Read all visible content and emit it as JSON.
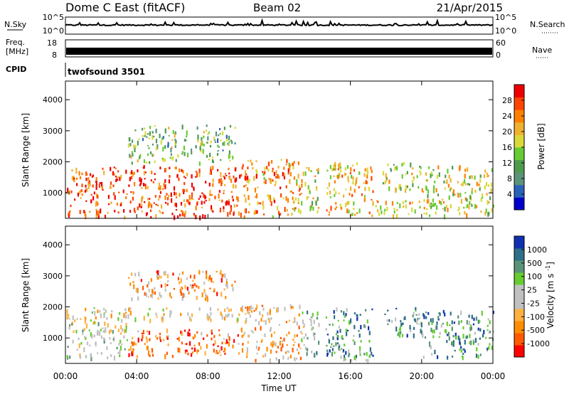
{
  "header": {
    "station": "Dome C East (fitACF)",
    "beam": "Beam 02",
    "date": "21/Apr/2015"
  },
  "strips": {
    "nsky": {
      "label": "N.Sky",
      "ticks": [
        "10^5",
        "10^0"
      ]
    },
    "nsearch": {
      "label": "N.Search",
      "ticks": [
        "10^5",
        "10^0"
      ]
    },
    "freq": {
      "label_line1": "Freq.",
      "label_line2": "[MHz]",
      "ticks": [
        "18",
        "8"
      ]
    },
    "nave": {
      "label": "Nave",
      "ticks": [
        "60",
        "0"
      ]
    },
    "cpid": {
      "label": "CPID",
      "value": "twofsound 3501"
    }
  },
  "colors": {
    "power": [
      "#0000cc",
      "#2a62b8",
      "#5b9378",
      "#4e9b4e",
      "#66cc33",
      "#d9d93a",
      "#f0b030",
      "#ff7f00",
      "#ff4400",
      "#ee0000"
    ],
    "velocity": [
      "#ff0000",
      "#ff5a00",
      "#ff8c00",
      "#ffb040",
      "#c0c0c0",
      "#c0c0c0",
      "#66cc33",
      "#5b9378",
      "#2e6f88",
      "#1030b0"
    ]
  },
  "chart_data": [
    {
      "type": "heatmap",
      "name": "power-panel",
      "ylabel": "Slant Range [km]",
      "colorbar_label": "Power [dB]",
      "yticks": [
        "4000",
        "3000",
        "2000",
        "1000"
      ],
      "ytick_values": [
        4000,
        3000,
        2000,
        1000
      ],
      "ylim": [
        180,
        4600
      ],
      "colorbar_ticks": [
        "28",
        "24",
        "20",
        "16",
        "12",
        "8",
        "4"
      ],
      "colorbar_range": [
        0,
        32
      ],
      "echo_bands": [
        {
          "t0": 0.0,
          "t1": 9.8,
          "r0": 250,
          "r1": 1900,
          "level": 0.85
        },
        {
          "t0": 9.8,
          "t1": 13.2,
          "r0": 250,
          "r1": 2100,
          "level": 0.7
        },
        {
          "t0": 13.2,
          "t1": 14.2,
          "r0": 300,
          "r1": 1900,
          "level": 0.55
        },
        {
          "t0": 14.6,
          "t1": 17.3,
          "r0": 300,
          "r1": 2000,
          "level": 0.65
        },
        {
          "t0": 17.3,
          "t1": 20.0,
          "r0": 300,
          "r1": 800,
          "level": 0.6
        },
        {
          "t0": 17.8,
          "t1": 20.0,
          "r0": 1100,
          "r1": 2000,
          "level": 0.5
        },
        {
          "t0": 20.0,
          "t1": 24.0,
          "r0": 300,
          "r1": 1900,
          "level": 0.55
        },
        {
          "t0": 3.5,
          "t1": 9.5,
          "r0": 2000,
          "r1": 3200,
          "level": 0.4
        }
      ]
    },
    {
      "type": "heatmap",
      "name": "velocity-panel",
      "ylabel": "Slant Range [km]",
      "colorbar_label": "Velocity [m s^-1]",
      "yticks": [
        "4000",
        "3000",
        "2000",
        "1000"
      ],
      "ytick_values": [
        4000,
        3000,
        2000,
        1000
      ],
      "ylim": [
        180,
        4600
      ],
      "colorbar_ticks": [
        "1000",
        "500",
        "100",
        "25",
        "-25",
        "-100",
        "-500",
        "-1000"
      ],
      "echo_bands": [
        {
          "t0": 0.0,
          "t1": 3.5,
          "r0": 400,
          "r1": 1600,
          "level": 0.55
        },
        {
          "t0": 3.5,
          "t1": 9.8,
          "r0": 450,
          "r1": 1300,
          "level": 0.2
        },
        {
          "t0": 0.0,
          "t1": 9.8,
          "r0": 1600,
          "r1": 2000,
          "level": 0.45
        },
        {
          "t0": 9.8,
          "t1": 13.2,
          "r0": 300,
          "r1": 2100,
          "level": 0.35
        },
        {
          "t0": 13.2,
          "t1": 14.2,
          "r0": 300,
          "r1": 1900,
          "level": 0.6
        },
        {
          "t0": 14.6,
          "t1": 17.3,
          "r0": 300,
          "r1": 2000,
          "level": 0.75
        },
        {
          "t0": 17.8,
          "t1": 20.0,
          "r0": 1100,
          "r1": 2000,
          "level": 0.7
        },
        {
          "t0": 20.0,
          "t1": 24.0,
          "r0": 400,
          "r1": 1900,
          "level": 0.75
        },
        {
          "t0": 3.5,
          "t1": 9.5,
          "r0": 2300,
          "r1": 3200,
          "level": 0.3
        }
      ]
    }
  ],
  "x_axis": {
    "label": "Time UT",
    "ticks": [
      "00:00",
      "04:00",
      "08:00",
      "12:00",
      "16:00",
      "20:00",
      "00:00"
    ],
    "tick_hours": [
      0,
      4,
      8,
      12,
      16,
      20,
      24
    ],
    "range": [
      0,
      24
    ]
  }
}
